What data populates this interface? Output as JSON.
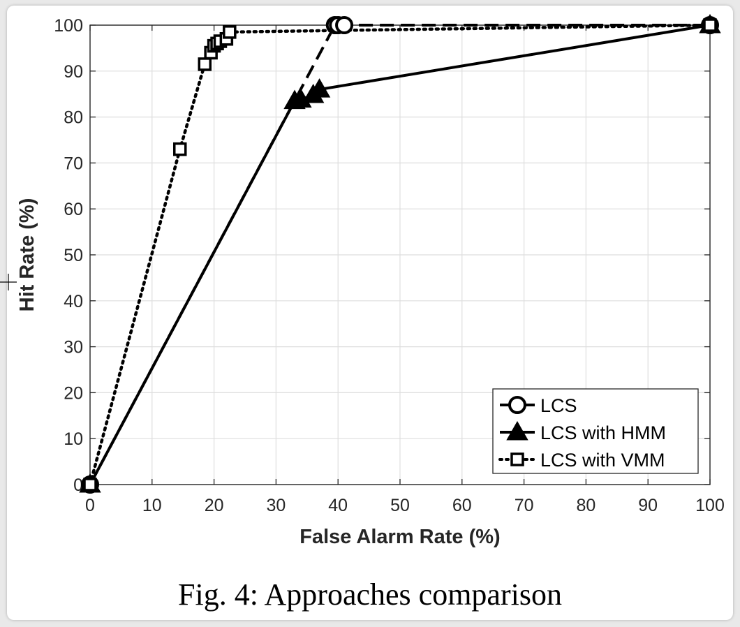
{
  "caption": "Fig. 4: Approaches comparison",
  "chart_data": {
    "type": "line",
    "xlabel": "False Alarm Rate (%)",
    "ylabel": "Hit Rate (%)",
    "xlim": [
      0,
      100
    ],
    "ylim": [
      0,
      100
    ],
    "xticks": [
      "0",
      "10",
      "20",
      "30",
      "40",
      "50",
      "60",
      "70",
      "80",
      "90",
      "100"
    ],
    "yticks": [
      "0",
      "10",
      "20",
      "30",
      "40",
      "50",
      "60",
      "70",
      "80",
      "90",
      "100"
    ],
    "grid": true,
    "legend_position": "bottom-right",
    "series": [
      {
        "name": "LCS",
        "marker": "circle",
        "line_style": "dashed",
        "color": "#000000",
        "x": [
          0,
          39.5,
          40,
          41,
          100
        ],
        "y": [
          0,
          100,
          100,
          100,
          100
        ]
      },
      {
        "name": "LCS with HMM",
        "marker": "triangle",
        "line_style": "solid",
        "color": "#000000",
        "x": [
          0,
          33,
          34,
          36,
          37,
          100
        ],
        "y": [
          0,
          83.5,
          83.8,
          84.8,
          86,
          100
        ]
      },
      {
        "name": "LCS with VMM",
        "marker": "square",
        "line_style": "dotted",
        "color": "#000000",
        "x": [
          0,
          14.5,
          18.5,
          19.5,
          20,
          20.5,
          21,
          22,
          22.5,
          100
        ],
        "y": [
          0,
          73,
          91.5,
          94,
          95.5,
          96,
          96.5,
          97,
          98.5,
          100
        ]
      }
    ]
  }
}
